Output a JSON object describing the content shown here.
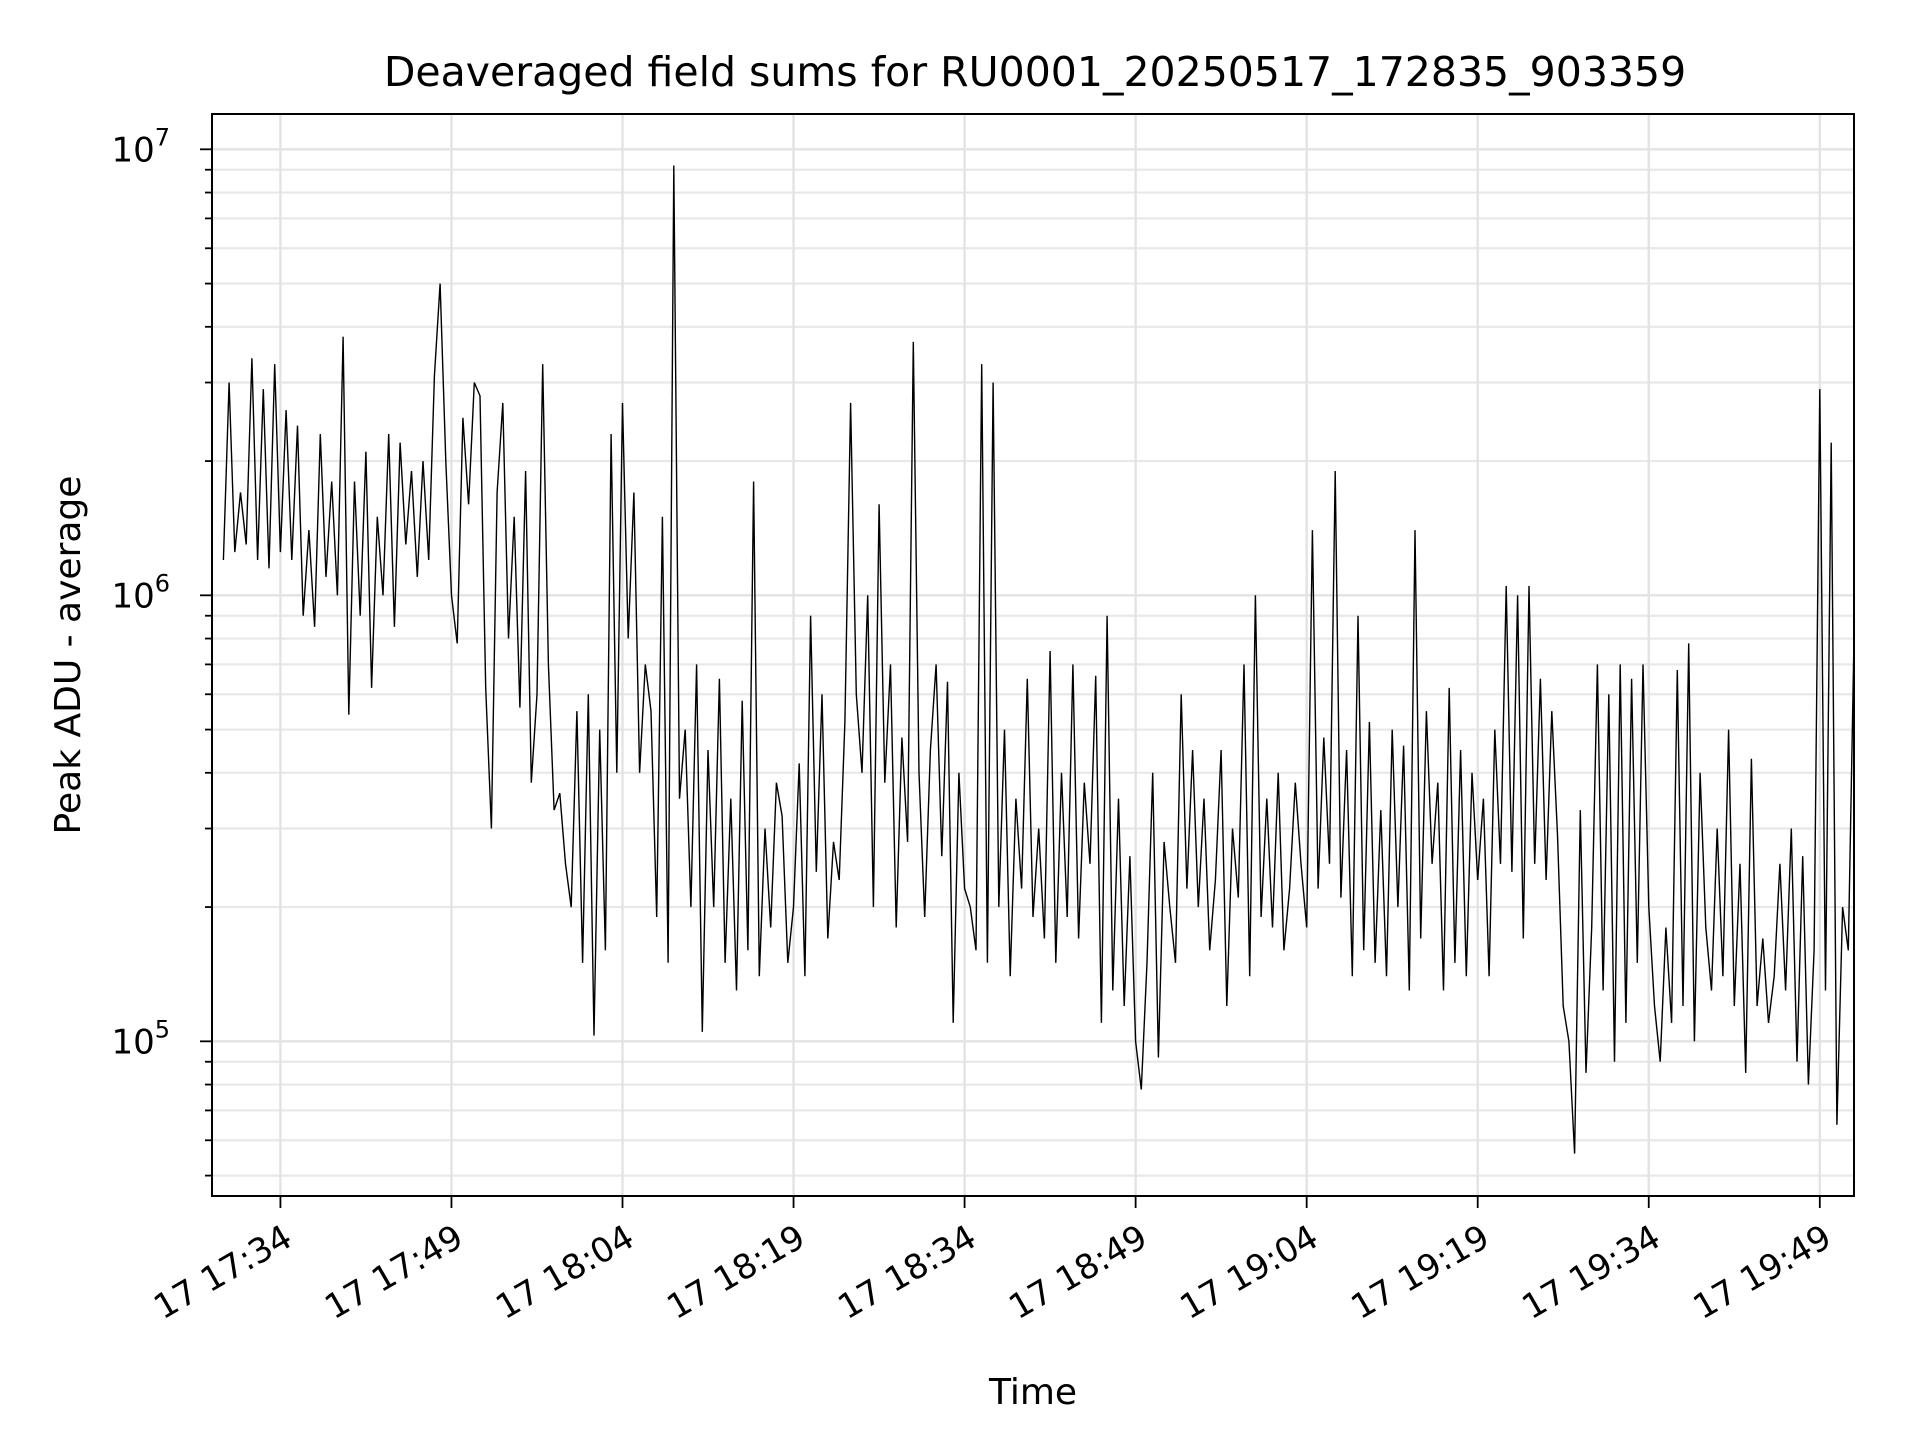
{
  "chart_data": {
    "type": "line",
    "title": "Deaveraged field sums for RU0001_20250517_172835_903359",
    "xlabel": "Time",
    "ylabel": "Peak ADU - average",
    "yscale": "log",
    "grid": true,
    "x_range": [
      "17 17:28",
      "17 19:52"
    ],
    "ylim": [
      45000,
      12000000
    ],
    "x_ticks": [
      "17 17:34",
      "17 17:49",
      "17 18:04",
      "17 18:19",
      "17 18:34",
      "17 18:49",
      "17 19:04",
      "17 19:19",
      "17 19:34",
      "17 19:49"
    ],
    "y_ticks": [
      {
        "value": 100000,
        "base": "10",
        "exp": "5"
      },
      {
        "value": 1000000,
        "base": "10",
        "exp": "6"
      },
      {
        "value": 10000000,
        "base": "10",
        "exp": "7"
      }
    ],
    "line_color": "#000000",
    "series": [
      {
        "points": [
          [
            "17:29",
            1200000
          ],
          [
            "17:29.5",
            3000000
          ],
          [
            "17:30",
            1250000
          ],
          [
            "17:30.5",
            1700000
          ],
          [
            "17:31",
            1300000
          ],
          [
            "17:31.5",
            3400000
          ],
          [
            "17:32",
            1200000
          ],
          [
            "17:32.5",
            2900000
          ],
          [
            "17:33",
            1150000
          ],
          [
            "17:33.5",
            3300000
          ],
          [
            "17:34",
            1250000
          ],
          [
            "17:34.5",
            2600000
          ],
          [
            "17:35",
            1200000
          ],
          [
            "17:35.5",
            2400000
          ],
          [
            "17:36",
            900000
          ],
          [
            "17:36.5",
            1400000
          ],
          [
            "17:37",
            850000
          ],
          [
            "17:37.5",
            2300000
          ],
          [
            "17:38",
            1100000
          ],
          [
            "17:38.5",
            1800000
          ],
          [
            "17:39",
            1000000
          ],
          [
            "17:39.5",
            3800000
          ],
          [
            "17:40",
            540000
          ],
          [
            "17:40.5",
            1800000
          ],
          [
            "17:41",
            900000
          ],
          [
            "17:41.5",
            2100000
          ],
          [
            "17:42",
            620000
          ],
          [
            "17:42.5",
            1500000
          ],
          [
            "17:43",
            1000000
          ],
          [
            "17:43.5",
            2300000
          ],
          [
            "17:44",
            850000
          ],
          [
            "17:44.5",
            2200000
          ],
          [
            "17:45",
            1300000
          ],
          [
            "17:45.5",
            1900000
          ],
          [
            "17:46",
            1100000
          ],
          [
            "17:46.5",
            2000000
          ],
          [
            "17:47",
            1200000
          ],
          [
            "17:47.5",
            3100000
          ],
          [
            "17:48",
            5000000
          ],
          [
            "17:48.5",
            2000000
          ],
          [
            "17:49",
            1000000
          ],
          [
            "17:49.5",
            780000
          ],
          [
            "17:50",
            2500000
          ],
          [
            "17:50.5",
            1600000
          ],
          [
            "17:51",
            3000000
          ],
          [
            "17:51.5",
            2800000
          ],
          [
            "17:52",
            620000
          ],
          [
            "17:52.5",
            300000
          ],
          [
            "17:53",
            1700000
          ],
          [
            "17:53.5",
            2700000
          ],
          [
            "17:54",
            800000
          ],
          [
            "17:54.5",
            1500000
          ],
          [
            "17:55",
            560000
          ],
          [
            "17:55.5",
            1900000
          ],
          [
            "17:56",
            380000
          ],
          [
            "17:56.5",
            600000
          ],
          [
            "17:57",
            3300000
          ],
          [
            "17:57.5",
            700000
          ],
          [
            "17:58",
            330000
          ],
          [
            "17:58.5",
            360000
          ],
          [
            "17:59",
            250000
          ],
          [
            "17:59.5",
            200000
          ],
          [
            "18:00",
            550000
          ],
          [
            "18:00.5",
            150000
          ],
          [
            "18:01",
            600000
          ],
          [
            "18:01.5",
            103000
          ],
          [
            "18:02",
            500000
          ],
          [
            "18:02.5",
            160000
          ],
          [
            "18:03",
            2300000
          ],
          [
            "18:03.5",
            400000
          ],
          [
            "18:04",
            2700000
          ],
          [
            "18:04.5",
            800000
          ],
          [
            "18:05",
            1700000
          ],
          [
            "18:05.5",
            400000
          ],
          [
            "18:06",
            700000
          ],
          [
            "18:06.5",
            550000
          ],
          [
            "18:07",
            190000
          ],
          [
            "18:07.5",
            1500000
          ],
          [
            "18:08",
            150000
          ],
          [
            "18:08.5",
            9200000
          ],
          [
            "18:09",
            350000
          ],
          [
            "18:09.5",
            500000
          ],
          [
            "18:10",
            200000
          ],
          [
            "18:10.5",
            700000
          ],
          [
            "18:11",
            105000
          ],
          [
            "18:11.5",
            450000
          ],
          [
            "18:12",
            200000
          ],
          [
            "18:12.5",
            650000
          ],
          [
            "18:13",
            150000
          ],
          [
            "18:13.5",
            350000
          ],
          [
            "18:14",
            130000
          ],
          [
            "18:14.5",
            580000
          ],
          [
            "18:15",
            160000
          ],
          [
            "18:15.5",
            1800000
          ],
          [
            "18:16",
            140000
          ],
          [
            "18:16.5",
            300000
          ],
          [
            "18:17",
            180000
          ],
          [
            "18:17.5",
            380000
          ],
          [
            "18:18",
            320000
          ],
          [
            "18:18.5",
            150000
          ],
          [
            "18:19",
            200000
          ],
          [
            "18:19.5",
            420000
          ],
          [
            "18:20",
            140000
          ],
          [
            "18:20.5",
            900000
          ],
          [
            "18:21",
            240000
          ],
          [
            "18:21.5",
            600000
          ],
          [
            "18:22",
            170000
          ],
          [
            "18:22.5",
            280000
          ],
          [
            "18:23",
            230000
          ],
          [
            "18:23.5",
            520000
          ],
          [
            "18:24",
            2700000
          ],
          [
            "18:24.5",
            600000
          ],
          [
            "18:25",
            400000
          ],
          [
            "18:25.5",
            1000000
          ],
          [
            "18:26",
            200000
          ],
          [
            "18:26.5",
            1600000
          ],
          [
            "18:27",
            380000
          ],
          [
            "18:27.5",
            700000
          ],
          [
            "18:28",
            180000
          ],
          [
            "18:28.5",
            480000
          ],
          [
            "18:29",
            280000
          ],
          [
            "18:29.5",
            3700000
          ],
          [
            "18:30",
            400000
          ],
          [
            "18:30.5",
            190000
          ],
          [
            "18:31",
            450000
          ],
          [
            "18:31.5",
            700000
          ],
          [
            "18:32",
            260000
          ],
          [
            "18:32.5",
            640000
          ],
          [
            "18:33",
            110000
          ],
          [
            "18:33.5",
            400000
          ],
          [
            "18:34",
            220000
          ],
          [
            "18:34.5",
            200000
          ],
          [
            "18:35",
            160000
          ],
          [
            "18:35.5",
            3300000
          ],
          [
            "18:36",
            150000
          ],
          [
            "18:36.5",
            3000000
          ],
          [
            "18:37",
            200000
          ],
          [
            "18:37.5",
            500000
          ],
          [
            "18:38",
            140000
          ],
          [
            "18:38.5",
            350000
          ],
          [
            "18:39",
            220000
          ],
          [
            "18:39.5",
            650000
          ],
          [
            "18:40",
            190000
          ],
          [
            "18:40.5",
            300000
          ],
          [
            "18:41",
            170000
          ],
          [
            "18:41.5",
            750000
          ],
          [
            "18:42",
            150000
          ],
          [
            "18:42.5",
            400000
          ],
          [
            "18:43",
            190000
          ],
          [
            "18:43.5",
            700000
          ],
          [
            "18:44",
            170000
          ],
          [
            "18:44.5",
            380000
          ],
          [
            "18:45",
            250000
          ],
          [
            "18:45.5",
            660000
          ],
          [
            "18:46",
            110000
          ],
          [
            "18:46.5",
            900000
          ],
          [
            "18:47",
            130000
          ],
          [
            "18:47.5",
            350000
          ],
          [
            "18:48",
            120000
          ],
          [
            "18:48.5",
            260000
          ],
          [
            "18:49",
            100000
          ],
          [
            "18:49.5",
            78000
          ],
          [
            "18:50",
            150000
          ],
          [
            "18:50.5",
            400000
          ],
          [
            "18:51",
            92000
          ],
          [
            "18:51.5",
            280000
          ],
          [
            "18:52",
            200000
          ],
          [
            "18:52.5",
            150000
          ],
          [
            "18:53",
            600000
          ],
          [
            "18:53.5",
            220000
          ],
          [
            "18:54",
            450000
          ],
          [
            "18:54.5",
            200000
          ],
          [
            "18:55",
            350000
          ],
          [
            "18:55.5",
            160000
          ],
          [
            "18:56",
            230000
          ],
          [
            "18:56.5",
            450000
          ],
          [
            "18:57",
            120000
          ],
          [
            "18:57.5",
            300000
          ],
          [
            "18:58",
            210000
          ],
          [
            "18:58.5",
            700000
          ],
          [
            "18:59",
            140000
          ],
          [
            "18:59.5",
            1000000
          ],
          [
            "19:00",
            190000
          ],
          [
            "19:00.5",
            350000
          ],
          [
            "19:01",
            180000
          ],
          [
            "19:01.5",
            400000
          ],
          [
            "19:02",
            160000
          ],
          [
            "19:02.5",
            220000
          ],
          [
            "19:03",
            380000
          ],
          [
            "19:03.5",
            250000
          ],
          [
            "19:04",
            180000
          ],
          [
            "19:04.5",
            1400000
          ],
          [
            "19:05",
            220000
          ],
          [
            "19:05.5",
            480000
          ],
          [
            "19:06",
            250000
          ],
          [
            "19:06.5",
            1900000
          ],
          [
            "19:07",
            210000
          ],
          [
            "19:07.5",
            450000
          ],
          [
            "19:08",
            140000
          ],
          [
            "19:08.5",
            900000
          ],
          [
            "19:09",
            160000
          ],
          [
            "19:09.5",
            520000
          ],
          [
            "19:10",
            150000
          ],
          [
            "19:10.5",
            330000
          ],
          [
            "19:11",
            140000
          ],
          [
            "19:11.5",
            500000
          ],
          [
            "19:12",
            200000
          ],
          [
            "19:12.5",
            460000
          ],
          [
            "19:13",
            130000
          ],
          [
            "19:13.5",
            1400000
          ],
          [
            "19:14",
            170000
          ],
          [
            "19:14.5",
            550000
          ],
          [
            "19:15",
            250000
          ],
          [
            "19:15.5",
            380000
          ],
          [
            "19:16",
            130000
          ],
          [
            "19:16.5",
            620000
          ],
          [
            "19:17",
            150000
          ],
          [
            "19:17.5",
            450000
          ],
          [
            "19:18",
            140000
          ],
          [
            "19:18.5",
            400000
          ],
          [
            "19:19",
            230000
          ],
          [
            "19:19.5",
            350000
          ],
          [
            "19:20",
            140000
          ],
          [
            "19:20.5",
            500000
          ],
          [
            "19:21",
            250000
          ],
          [
            "19:21.5",
            1050000
          ],
          [
            "19:22",
            240000
          ],
          [
            "19:22.5",
            1000000
          ],
          [
            "19:23",
            170000
          ],
          [
            "19:23.5",
            1050000
          ],
          [
            "19:24",
            250000
          ],
          [
            "19:24.5",
            650000
          ],
          [
            "19:25",
            230000
          ],
          [
            "19:25.5",
            550000
          ],
          [
            "19:26",
            290000
          ],
          [
            "19:26.5",
            120000
          ],
          [
            "19:27",
            100000
          ],
          [
            "19:27.5",
            56000
          ],
          [
            "19:28",
            330000
          ],
          [
            "19:28.5",
            85000
          ],
          [
            "19:29",
            180000
          ],
          [
            "19:29.5",
            700000
          ],
          [
            "19:30",
            130000
          ],
          [
            "19:30.5",
            600000
          ],
          [
            "19:31",
            90000
          ],
          [
            "19:31.5",
            700000
          ],
          [
            "19:32",
            110000
          ],
          [
            "19:32.5",
            650000
          ],
          [
            "19:33",
            150000
          ],
          [
            "19:33.5",
            700000
          ],
          [
            "19:34",
            200000
          ],
          [
            "19:34.5",
            120000
          ],
          [
            "19:35",
            90000
          ],
          [
            "19:35.5",
            180000
          ],
          [
            "19:36",
            110000
          ],
          [
            "19:36.5",
            680000
          ],
          [
            "19:37",
            120000
          ],
          [
            "19:37.5",
            780000
          ],
          [
            "19:38",
            100000
          ],
          [
            "19:38.5",
            400000
          ],
          [
            "19:39",
            180000
          ],
          [
            "19:39.5",
            130000
          ],
          [
            "19:40",
            300000
          ],
          [
            "19:40.5",
            140000
          ],
          [
            "19:41",
            500000
          ],
          [
            "19:41.5",
            120000
          ],
          [
            "19:42",
            250000
          ],
          [
            "19:42.5",
            85000
          ],
          [
            "19:43",
            430000
          ],
          [
            "19:43.5",
            120000
          ],
          [
            "19:44",
            170000
          ],
          [
            "19:44.5",
            110000
          ],
          [
            "19:45",
            140000
          ],
          [
            "19:45.5",
            250000
          ],
          [
            "19:46",
            130000
          ],
          [
            "19:46.5",
            300000
          ],
          [
            "19:47",
            90000
          ],
          [
            "19:47.5",
            260000
          ],
          [
            "19:48",
            80000
          ],
          [
            "19:48.5",
            160000
          ],
          [
            "19:49",
            2900000
          ],
          [
            "19:49.5",
            130000
          ],
          [
            "19:50",
            2200000
          ],
          [
            "19:50.5",
            65000
          ],
          [
            "19:51",
            200000
          ],
          [
            "19:51.5",
            160000
          ],
          [
            "19:52",
            800000
          ]
        ]
      }
    ]
  }
}
